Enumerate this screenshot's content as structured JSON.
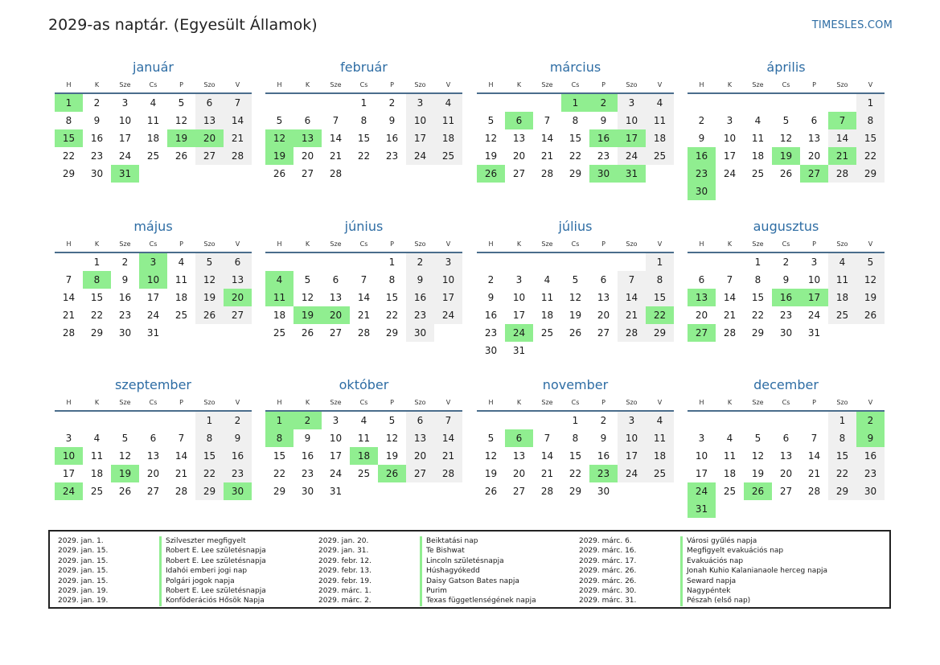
{
  "header": {
    "title": "2029-as naptár. (Egyesült Államok)",
    "site": "TIMESLES.COM"
  },
  "weekdays": [
    "H",
    "K",
    "Sze",
    "Cs",
    "P",
    "Szo",
    "V"
  ],
  "colors": {
    "accent": "#2e6da4",
    "holiday": "#90ee90",
    "weekend": "#f0f0f0"
  },
  "months": [
    {
      "name": "január",
      "offset": 0,
      "days": 31,
      "holidays": [
        1,
        15,
        19,
        20,
        31
      ]
    },
    {
      "name": "február",
      "offset": 3,
      "days": 28,
      "holidays": [
        12,
        13,
        19
      ]
    },
    {
      "name": "március",
      "offset": 3,
      "days": 31,
      "holidays": [
        1,
        2,
        6,
        16,
        17,
        26,
        30,
        31
      ]
    },
    {
      "name": "április",
      "offset": 6,
      "days": 30,
      "holidays": [
        7,
        16,
        19,
        21,
        23,
        27,
        30
      ]
    },
    {
      "name": "május",
      "offset": 1,
      "days": 31,
      "holidays": [
        3,
        8,
        10,
        20
      ]
    },
    {
      "name": "június",
      "offset": 4,
      "days": 30,
      "holidays": [
        4,
        11,
        19,
        20
      ]
    },
    {
      "name": "július",
      "offset": 6,
      "days": 31,
      "holidays": [
        22,
        24
      ]
    },
    {
      "name": "augusztus",
      "offset": 2,
      "days": 31,
      "holidays": [
        13,
        16,
        17,
        27
      ]
    },
    {
      "name": "szeptember",
      "offset": 5,
      "days": 30,
      "holidays": [
        10,
        19,
        24,
        30
      ]
    },
    {
      "name": "október",
      "offset": 0,
      "days": 31,
      "holidays": [
        1,
        2,
        8,
        18,
        26
      ]
    },
    {
      "name": "november",
      "offset": 3,
      "days": 30,
      "holidays": [
        6,
        23
      ]
    },
    {
      "name": "december",
      "offset": 5,
      "days": 31,
      "holidays": [
        2,
        9,
        24,
        26,
        31
      ]
    }
  ],
  "holiday_list": [
    [
      {
        "date": "2029. jan. 1.",
        "name": "Szilveszter megfigyelt"
      },
      {
        "date": "2029. jan. 15.",
        "name": "Robert E. Lee születésnapja"
      },
      {
        "date": "2029. jan. 15.",
        "name": "Robert E. Lee születésnapja"
      },
      {
        "date": "2029. jan. 15.",
        "name": "Idahói emberi jogi nap"
      },
      {
        "date": "2029. jan. 15.",
        "name": "Polgári jogok napja"
      },
      {
        "date": "2029. jan. 19.",
        "name": "Robert E. Lee születésnapja"
      },
      {
        "date": "2029. jan. 19.",
        "name": "Konföderációs Hősök Napja"
      }
    ],
    [
      {
        "date": "2029. jan. 20.",
        "name": "Beiktatási nap"
      },
      {
        "date": "2029. jan. 31.",
        "name": "Te Bishwat"
      },
      {
        "date": "2029. febr. 12.",
        "name": "Lincoln születésnapja"
      },
      {
        "date": "2029. febr. 13.",
        "name": "Húshagyókedd"
      },
      {
        "date": "2029. febr. 19.",
        "name": "Daisy Gatson Bates napja"
      },
      {
        "date": "2029. márc. 1.",
        "name": "Purim"
      },
      {
        "date": "2029. márc. 2.",
        "name": "Texas függetlenségének napja"
      }
    ],
    [
      {
        "date": "2029. márc. 6.",
        "name": "Városi gyűlés napja"
      },
      {
        "date": "2029. márc. 16.",
        "name": "Megfigyelt evakuációs nap"
      },
      {
        "date": "2029. márc. 17.",
        "name": "Evakuációs nap"
      },
      {
        "date": "2029. márc. 26.",
        "name": "Jonah Kuhio Kalanianaole herceg napja"
      },
      {
        "date": "2029. márc. 26.",
        "name": "Seward napja"
      },
      {
        "date": "2029. márc. 30.",
        "name": "Nagypéntek"
      },
      {
        "date": "2029. márc. 31.",
        "name": "Pészah (első nap)"
      }
    ]
  ]
}
